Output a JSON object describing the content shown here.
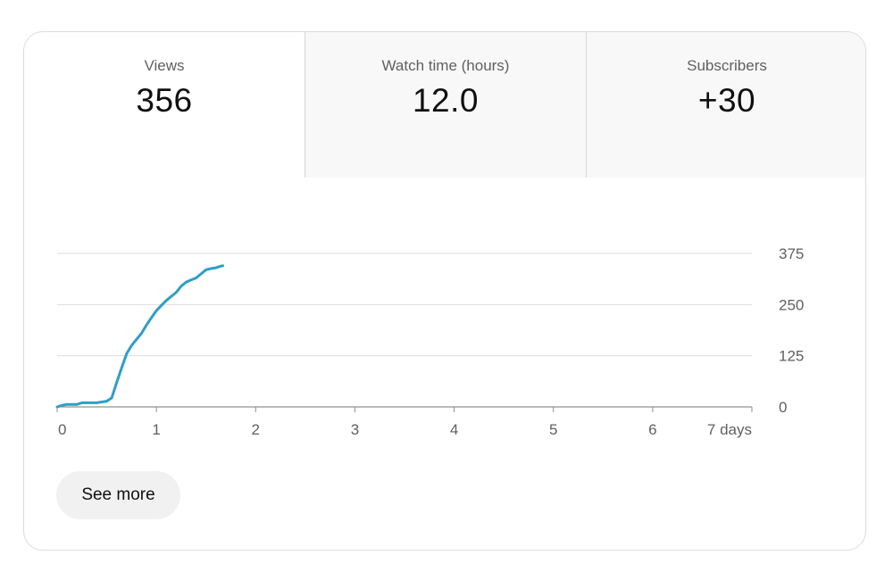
{
  "tabs": [
    {
      "label": "Views",
      "value": "356",
      "active": true
    },
    {
      "label": "Watch time (hours)",
      "value": "12.0",
      "active": false
    },
    {
      "label": "Subscribers",
      "value": "+30",
      "active": false
    }
  ],
  "colors": {
    "line": "#2e9fc7",
    "grid": "#dddddd",
    "axis": "#909090",
    "tick_text": "#606060"
  },
  "chart_data": {
    "type": "line",
    "title": "",
    "xlabel": "",
    "ylabel": "",
    "x_ticks": [
      "0",
      "1",
      "2",
      "3",
      "4",
      "5",
      "6",
      "7 days"
    ],
    "y_ticks": [
      "0",
      "125",
      "250",
      "375"
    ],
    "xlim": [
      0,
      7
    ],
    "ylim": [
      0,
      375
    ],
    "grid": true,
    "y_axis_side": "right",
    "series": [
      {
        "x": [
          0,
          0.05,
          0.1,
          0.2,
          0.25,
          0.3,
          0.4,
          0.45,
          0.5,
          0.55,
          0.6,
          0.65,
          0.7,
          0.75,
          0.8,
          0.85,
          0.9,
          0.95,
          1.0,
          1.05,
          1.1,
          1.15,
          1.2,
          1.25,
          1.3,
          1.35,
          1.4,
          1.45,
          1.5,
          1.55,
          1.6,
          1.65,
          1.67
        ],
        "y": [
          0,
          4,
          6,
          6,
          10,
          10,
          10,
          12,
          14,
          22,
          60,
          95,
          130,
          150,
          165,
          180,
          200,
          218,
          235,
          248,
          260,
          270,
          280,
          295,
          305,
          310,
          315,
          325,
          335,
          338,
          340,
          344,
          345
        ]
      }
    ]
  },
  "see_more": {
    "label": "See more"
  }
}
